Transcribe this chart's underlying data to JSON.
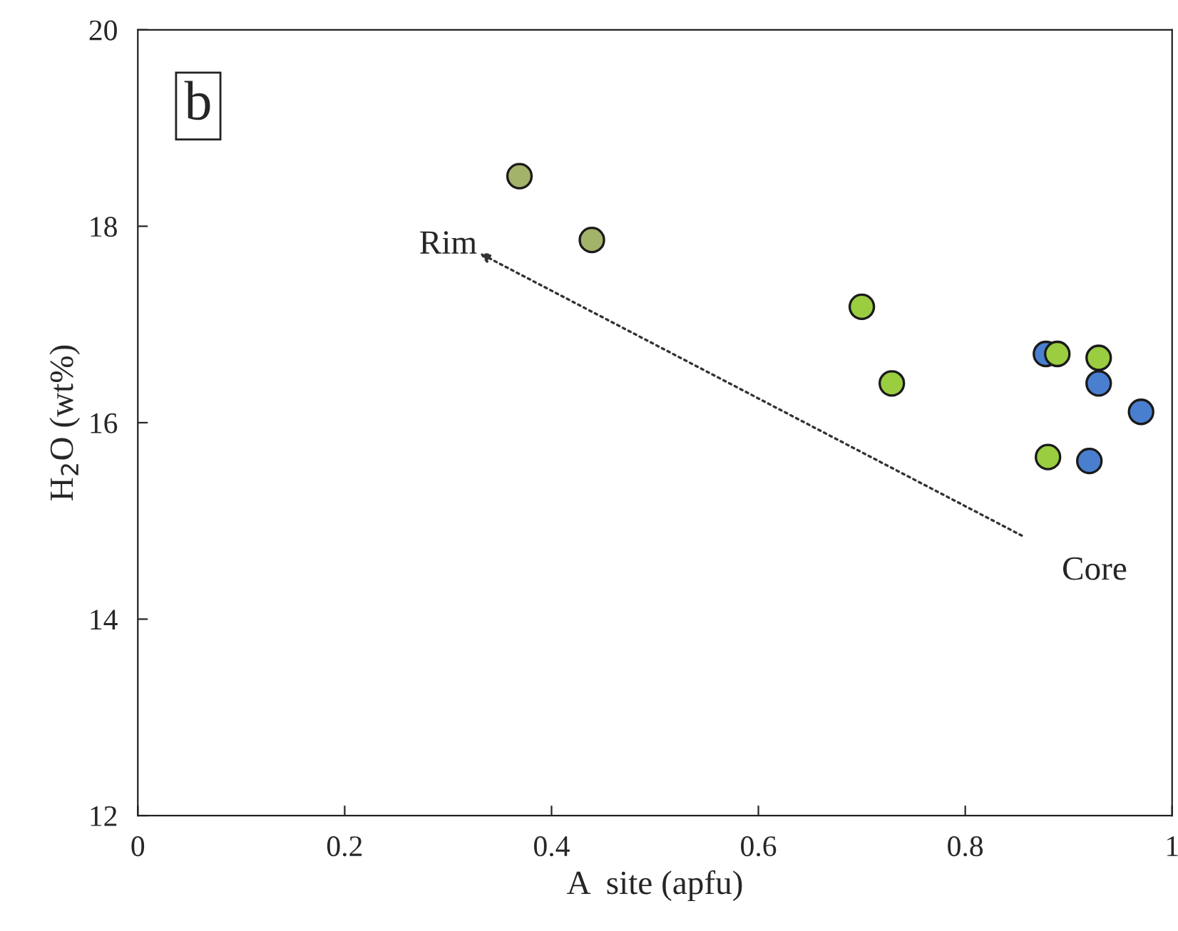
{
  "chart_data": {
    "type": "scatter",
    "xlabel": "A  site (apfu)",
    "ylabel": "H$_{2}$O (wt%)",
    "xlim": [
      0,
      1
    ],
    "ylim": [
      12,
      20
    ],
    "xticks": [
      0,
      0.2,
      0.4,
      0.6,
      0.8,
      1
    ],
    "yticks": [
      12,
      14,
      16,
      18,
      20
    ],
    "grid": false,
    "marker": "circle",
    "series": [
      {
        "color": "#a3b36a",
        "x": [
          0.369,
          0.439
        ],
        "values": [
          18.51,
          17.86
        ]
      },
      {
        "color": "#4a7fd0",
        "x": [
          0.878,
          0.929,
          0.97,
          0.92
        ],
        "values": [
          16.7,
          16.4,
          16.11,
          15.61
        ]
      },
      {
        "color": "#9acd40",
        "x": [
          0.7,
          0.729,
          0.889,
          0.929,
          0.88
        ],
        "values": [
          17.18,
          16.4,
          16.7,
          16.66,
          15.65
        ]
      }
    ],
    "annotations": [
      "b",
      "Rim",
      "Core"
    ]
  }
}
